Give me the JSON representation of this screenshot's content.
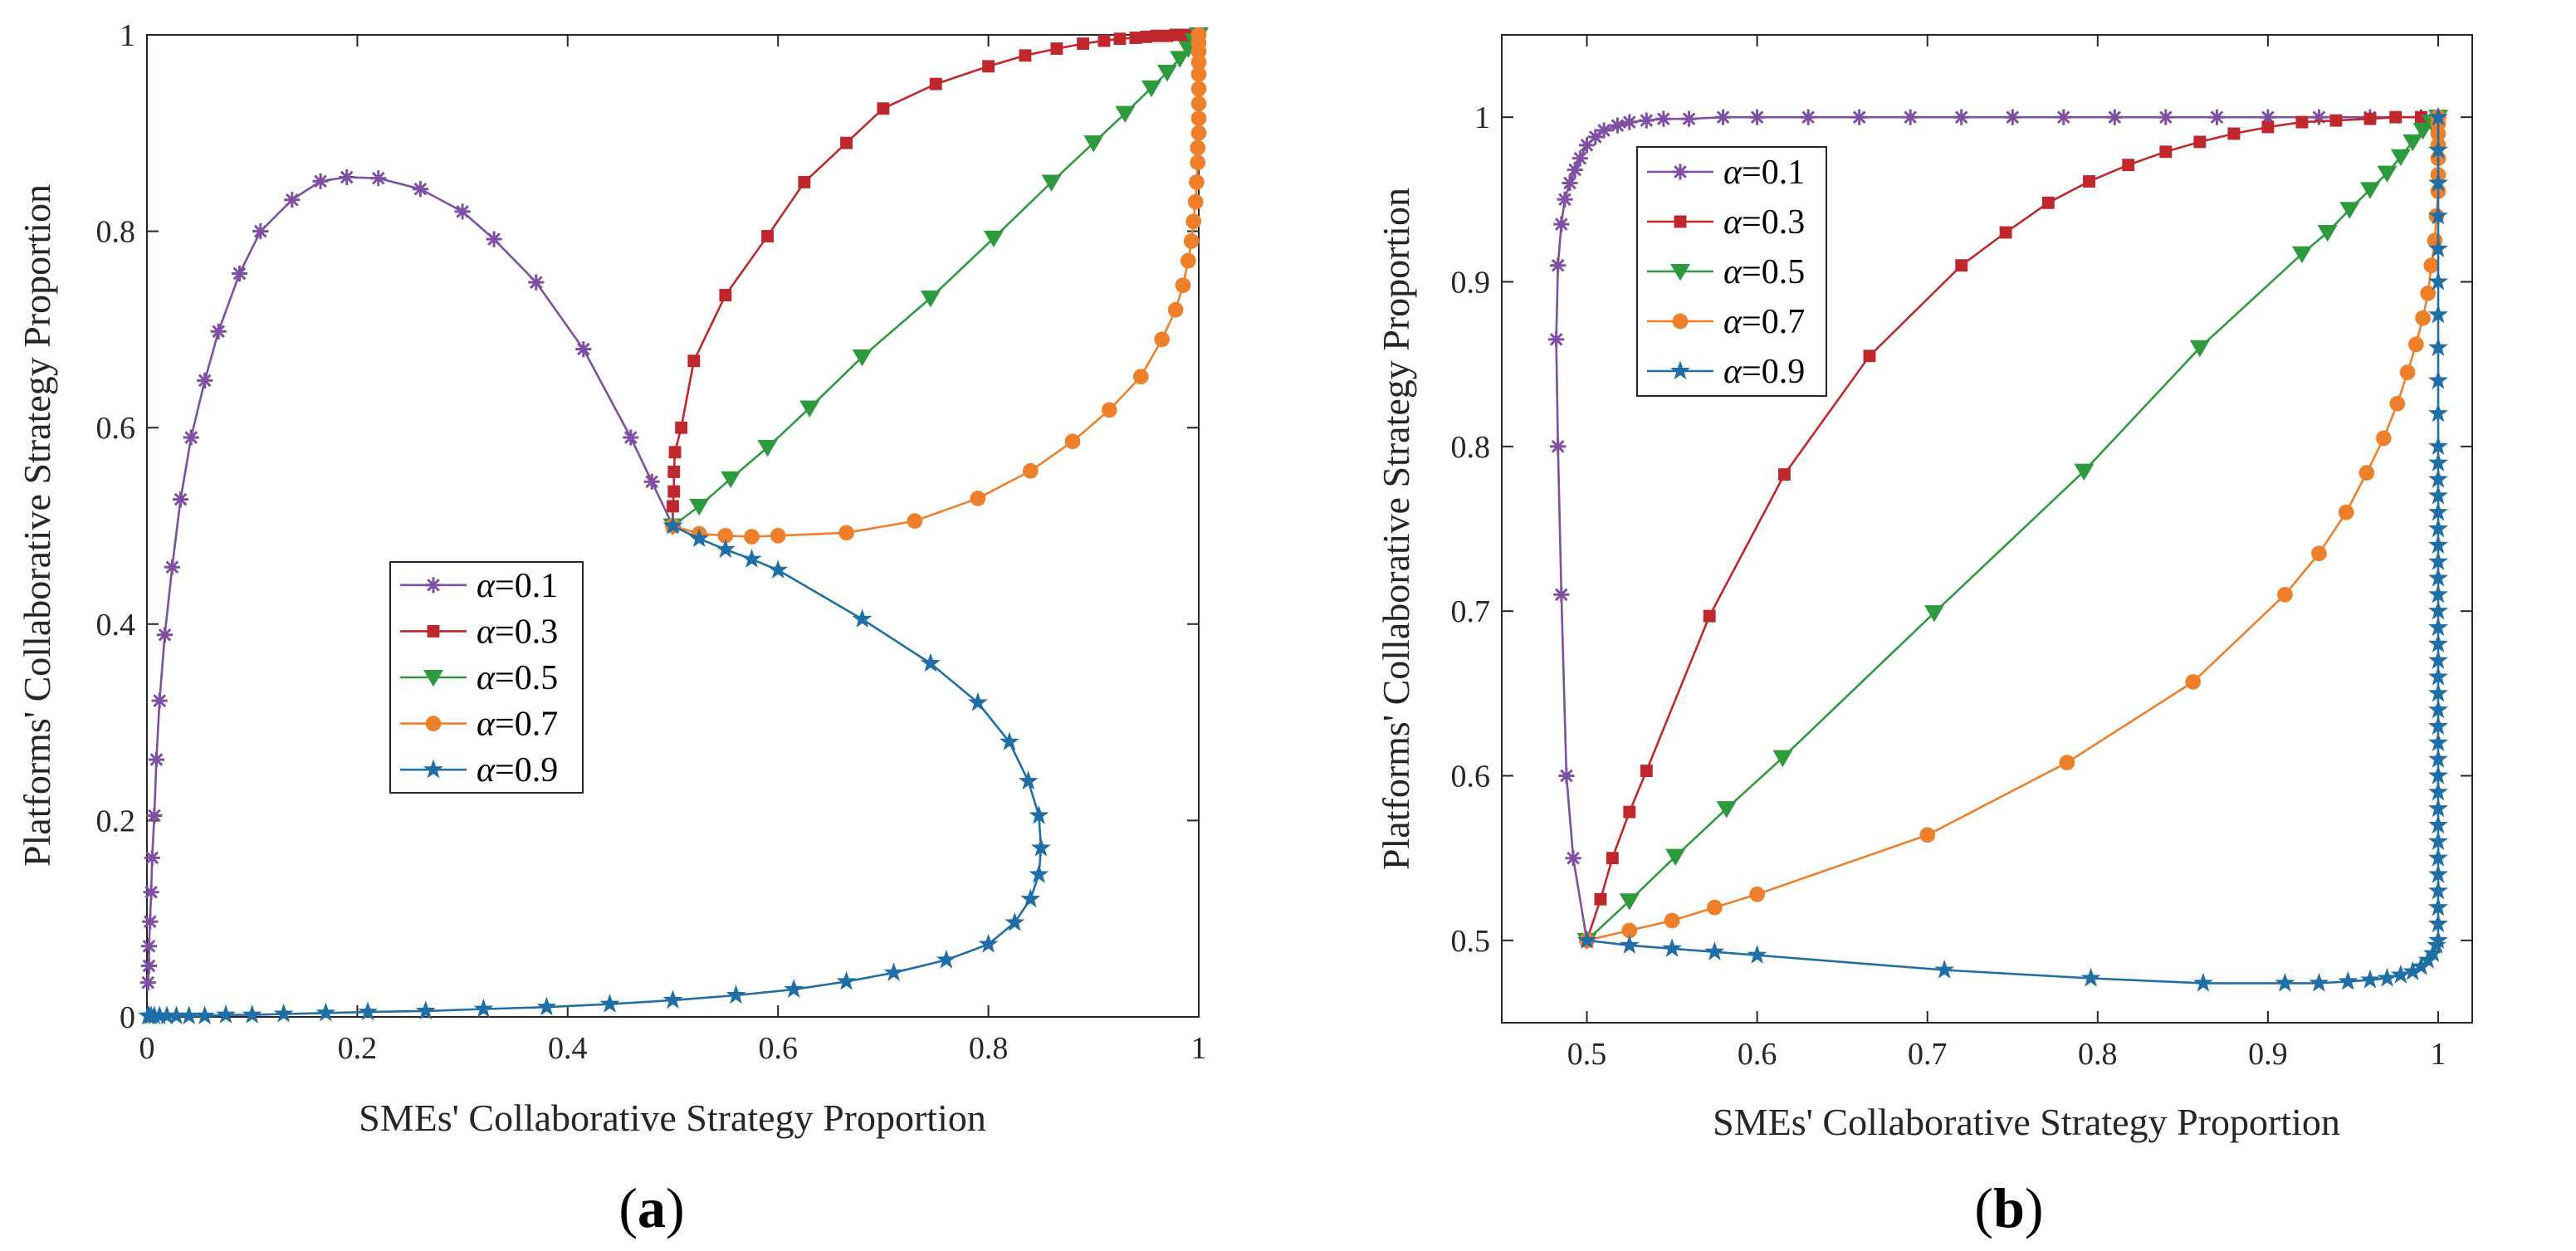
{
  "colors": {
    "a01": "#7E4FA3",
    "a03": "#C0272D",
    "a05": "#2E9A3E",
    "a07": "#EE7F2B",
    "a09": "#1F6FA6",
    "axis": "#262626"
  },
  "chart_data": [
    {
      "type": "line",
      "panel_label_open": "(",
      "panel_label_letter": "a",
      "panel_label_close": ")",
      "xlabel": "SMEs' Collaborative Strategy Proportion",
      "ylabel": "Platforms' Collaborative Strategy Proportion",
      "xlim": [
        0,
        1
      ],
      "ylim": [
        0,
        1
      ],
      "xticks": [
        0,
        0.2,
        0.4,
        0.6,
        0.8,
        1
      ],
      "yticks": [
        0,
        0.2,
        0.4,
        0.6,
        0.8,
        1
      ],
      "xtick_labels": [
        "0",
        "0.2",
        "0.4",
        "0.6",
        "0.8",
        "1"
      ],
      "ytick_labels": [
        "0",
        "0.2",
        "0.4",
        "0.6",
        "0.8",
        "1"
      ],
      "grid": false,
      "legend_position": "center-left",
      "series": [
        {
          "name": "α=0.1",
          "greek": "α",
          "value_text": "=0.1",
          "marker": "asterisk",
          "color_key": "a01",
          "x": [
            0.5,
            0.48,
            0.46,
            0.415,
            0.37,
            0.33,
            0.3,
            0.26,
            0.22,
            0.19,
            0.165,
            0.138,
            0.108,
            0.088,
            0.068,
            0.055,
            0.042,
            0.032,
            0.024,
            0.017,
            0.012,
            0.009,
            0.007,
            0.005,
            0.004,
            0.003,
            0.002,
            0.002,
            0.001
          ],
          "y": [
            0.5,
            0.545,
            0.59,
            0.68,
            0.748,
            0.792,
            0.82,
            0.843,
            0.854,
            0.855,
            0.851,
            0.832,
            0.8,
            0.757,
            0.698,
            0.648,
            0.59,
            0.527,
            0.458,
            0.389,
            0.322,
            0.262,
            0.205,
            0.162,
            0.127,
            0.097,
            0.072,
            0.052,
            0.035
          ]
        },
        {
          "name": "α=0.3",
          "greek": "α",
          "value_text": "=0.3",
          "marker": "square",
          "color_key": "a03",
          "x": [
            0.5,
            0.5,
            0.501,
            0.501,
            0.502,
            0.508,
            0.52,
            0.55,
            0.59,
            0.625,
            0.665,
            0.7,
            0.75,
            0.8,
            0.835,
            0.865,
            0.89,
            0.91,
            0.925,
            0.94,
            0.95,
            0.96,
            0.97,
            0.978,
            0.985,
            0.99,
            0.995,
            1
          ],
          "y": [
            0.5,
            0.52,
            0.535,
            0.555,
            0.575,
            0.6,
            0.668,
            0.735,
            0.795,
            0.85,
            0.89,
            0.925,
            0.95,
            0.968,
            0.979,
            0.986,
            0.991,
            0.994,
            0.996,
            0.997,
            0.998,
            0.999,
            0.999,
            1,
            1,
            1,
            1,
            1
          ]
        },
        {
          "name": "α=0.5",
          "greek": "α",
          "value_text": "=0.5",
          "marker": "triangle-down",
          "color_key": "a05",
          "x": [
            0.5,
            0.525,
            0.555,
            0.59,
            0.63,
            0.68,
            0.745,
            0.805,
            0.86,
            0.9,
            0.93,
            0.955,
            0.97,
            0.982,
            0.99,
            0.996,
            1
          ],
          "y": [
            0.5,
            0.52,
            0.548,
            0.58,
            0.62,
            0.672,
            0.732,
            0.793,
            0.85,
            0.89,
            0.92,
            0.946,
            0.962,
            0.976,
            0.986,
            0.994,
            1
          ]
        },
        {
          "name": "α=0.7",
          "greek": "α",
          "value_text": "=0.7",
          "marker": "circle",
          "color_key": "a07",
          "x": [
            0.5,
            0.525,
            0.55,
            0.575,
            0.6,
            0.665,
            0.73,
            0.79,
            0.84,
            0.88,
            0.915,
            0.945,
            0.965,
            0.978,
            0.985,
            0.99,
            0.993,
            0.995,
            0.997,
            0.998,
            0.999,
            0.999,
            1,
            1,
            1,
            1,
            1,
            1,
            1,
            1,
            1
          ],
          "y": [
            0.5,
            0.492,
            0.49,
            0.489,
            0.49,
            0.493,
            0.505,
            0.528,
            0.556,
            0.586,
            0.618,
            0.652,
            0.69,
            0.72,
            0.745,
            0.77,
            0.79,
            0.81,
            0.83,
            0.85,
            0.87,
            0.885,
            0.9,
            0.915,
            0.93,
            0.945,
            0.96,
            0.972,
            0.983,
            0.992,
            1
          ]
        },
        {
          "name": "α=0.9",
          "greek": "α",
          "value_text": "=0.9",
          "marker": "star",
          "color_key": "a09",
          "x": [
            0.5,
            0.525,
            0.55,
            0.575,
            0.6,
            0.68,
            0.745,
            0.79,
            0.82,
            0.838,
            0.848,
            0.85,
            0.848,
            0.84,
            0.825,
            0.8,
            0.76,
            0.71,
            0.665,
            0.615,
            0.56,
            0.5,
            0.44,
            0.38,
            0.32,
            0.265,
            0.21,
            0.17,
            0.13,
            0.1,
            0.075,
            0.055,
            0.04,
            0.028,
            0.019,
            0.012,
            0.007,
            0.004,
            0.002,
            0.001
          ],
          "y": [
            0.5,
            0.487,
            0.476,
            0.466,
            0.455,
            0.405,
            0.36,
            0.32,
            0.28,
            0.24,
            0.205,
            0.172,
            0.145,
            0.12,
            0.096,
            0.074,
            0.058,
            0.045,
            0.036,
            0.028,
            0.022,
            0.017,
            0.013,
            0.01,
            0.008,
            0.006,
            0.005,
            0.004,
            0.003,
            0.002,
            0.002,
            0.001,
            0.001,
            0.001,
            0.001,
            0.001,
            0.001,
            0.001,
            0.001,
            0.001
          ]
        }
      ]
    },
    {
      "type": "line",
      "panel_label_open": "(",
      "panel_label_letter": "b",
      "panel_label_close": ")",
      "xlabel": "SMEs' Collaborative Strategy Proportion",
      "ylabel": "Platforms' Collaborative Strategy Proportion",
      "xlim": [
        0.45,
        1.02
      ],
      "ylim": [
        0.45,
        1.05
      ],
      "xticks": [
        0.5,
        0.6,
        0.7,
        0.8,
        0.9,
        1
      ],
      "yticks": [
        0.5,
        0.6,
        0.7,
        0.8,
        0.9,
        1
      ],
      "xtick_labels": [
        "0.5",
        "0.6",
        "0.7",
        "0.8",
        "0.9",
        "1"
      ],
      "ytick_labels": [
        "0.5",
        "0.6",
        "0.7",
        "0.8",
        "0.9",
        "1"
      ],
      "grid": false,
      "legend_position": "top-left",
      "series": [
        {
          "name": "α=0.1",
          "greek": "α",
          "value_text": "=0.1",
          "marker": "asterisk",
          "color_key": "a01",
          "x": [
            0.5,
            0.492,
            0.488,
            0.485,
            0.483,
            0.482,
            0.483,
            0.485,
            0.487,
            0.49,
            0.493,
            0.496,
            0.5,
            0.505,
            0.51,
            0.518,
            0.525,
            0.535,
            0.545,
            0.56,
            0.58,
            0.6,
            0.63,
            0.66,
            0.69,
            0.72,
            0.75,
            0.78,
            0.81,
            0.84,
            0.87,
            0.9,
            0.93,
            0.96,
            0.99,
            1
          ],
          "y": [
            0.5,
            0.55,
            0.6,
            0.71,
            0.8,
            0.865,
            0.91,
            0.935,
            0.95,
            0.96,
            0.968,
            0.975,
            0.983,
            0.988,
            0.992,
            0.995,
            0.997,
            0.998,
            0.999,
            0.999,
            1,
            1,
            1,
            1,
            1,
            1,
            1,
            1,
            1,
            1,
            1,
            1,
            1,
            1,
            1,
            1
          ]
        },
        {
          "name": "α=0.3",
          "greek": "α",
          "value_text": "=0.3",
          "marker": "square",
          "color_key": "a03",
          "x": [
            0.5,
            0.508,
            0.515,
            0.525,
            0.535,
            0.572,
            0.616,
            0.666,
            0.72,
            0.746,
            0.771,
            0.795,
            0.818,
            0.84,
            0.86,
            0.88,
            0.9,
            0.92,
            0.94,
            0.96,
            0.975,
            0.99,
            1
          ],
          "y": [
            0.5,
            0.525,
            0.55,
            0.578,
            0.603,
            0.697,
            0.783,
            0.855,
            0.91,
            0.93,
            0.948,
            0.961,
            0.971,
            0.979,
            0.985,
            0.99,
            0.994,
            0.997,
            0.998,
            0.999,
            1,
            1,
            1
          ]
        },
        {
          "name": "α=0.5",
          "greek": "α",
          "value_text": "=0.5",
          "marker": "triangle-down",
          "color_key": "a05",
          "x": [
            0.5,
            0.525,
            0.552,
            0.582,
            0.615,
            0.704,
            0.792,
            0.86,
            0.92,
            0.935,
            0.948,
            0.96,
            0.97,
            0.978,
            0.985,
            0.991,
            0.996,
            1
          ],
          "y": [
            0.5,
            0.524,
            0.551,
            0.58,
            0.611,
            0.699,
            0.785,
            0.86,
            0.917,
            0.93,
            0.944,
            0.956,
            0.966,
            0.976,
            0.985,
            0.992,
            0.997,
            1
          ],
          "note": ""
        },
        {
          "name": "α=0.7",
          "greek": "α",
          "value_text": "=0.7",
          "marker": "circle",
          "color_key": "a07",
          "x": [
            0.5,
            0.525,
            0.55,
            0.575,
            0.6,
            0.7,
            0.782,
            0.856,
            0.91,
            0.93,
            0.946,
            0.958,
            0.968,
            0.976,
            0.982,
            0.987,
            0.991,
            0.994,
            0.996,
            0.998,
            0.999,
            1,
            1,
            1,
            1,
            1,
            1,
            1
          ],
          "y": [
            0.5,
            0.506,
            0.512,
            0.52,
            0.528,
            0.564,
            0.608,
            0.657,
            0.71,
            0.735,
            0.76,
            0.784,
            0.805,
            0.826,
            0.845,
            0.862,
            0.878,
            0.893,
            0.91,
            0.925,
            0.94,
            0.955,
            0.965,
            0.975,
            0.983,
            0.99,
            0.996,
            1
          ]
        },
        {
          "name": "α=0.9",
          "greek": "α",
          "value_text": "=0.9",
          "marker": "star",
          "color_key": "a09",
          "x": [
            0.5,
            0.525,
            0.55,
            0.575,
            0.6,
            0.71,
            0.796,
            0.862,
            0.91,
            0.93,
            0.947,
            0.96,
            0.97,
            0.978,
            0.985,
            0.99,
            0.994,
            0.997,
            0.999,
            1,
            1,
            1,
            1,
            1,
            1,
            1,
            1,
            1,
            1,
            1,
            1,
            1,
            1,
            1,
            1,
            1,
            1,
            1,
            1,
            1,
            1,
            1,
            1,
            1,
            1,
            1,
            1,
            1,
            1,
            1,
            1,
            1,
            1,
            1,
            1,
            1,
            1,
            1,
            1,
            1
          ],
          "y": [
            0.5,
            0.497,
            0.495,
            0.493,
            0.491,
            0.482,
            0.477,
            0.474,
            0.474,
            0.474,
            0.475,
            0.476,
            0.477,
            0.479,
            0.481,
            0.484,
            0.488,
            0.492,
            0.497,
            0.5,
            0.51,
            0.52,
            0.53,
            0.54,
            0.55,
            0.56,
            0.57,
            0.58,
            0.59,
            0.6,
            0.61,
            0.62,
            0.63,
            0.64,
            0.65,
            0.66,
            0.67,
            0.68,
            0.69,
            0.7,
            0.71,
            0.72,
            0.73,
            0.74,
            0.75,
            0.76,
            0.77,
            0.78,
            0.79,
            0.8,
            0.82,
            0.84,
            0.86,
            0.88,
            0.9,
            0.92,
            0.94,
            0.96,
            0.98,
            1
          ]
        }
      ]
    }
  ]
}
